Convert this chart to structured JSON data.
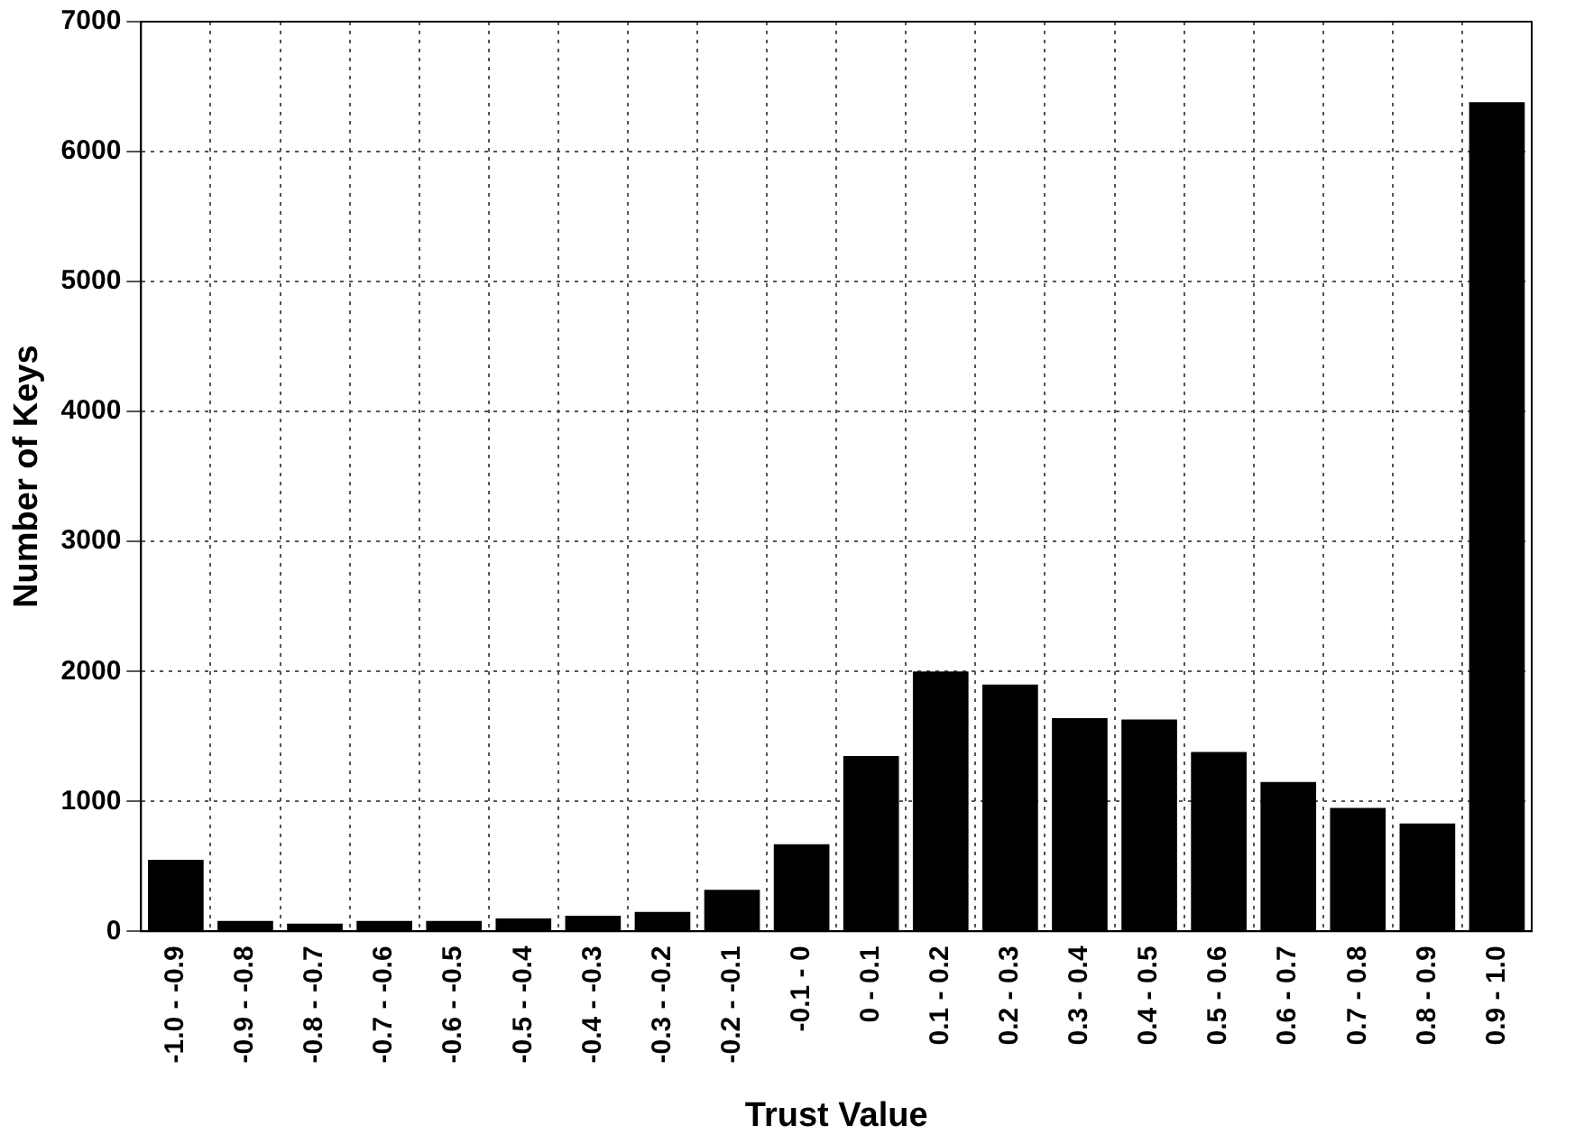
{
  "chart_data": {
    "type": "bar",
    "xlabel": "Trust Value",
    "ylabel": "Number of Keys",
    "categories": [
      "-1.0 - -0.9",
      "-0.9 - -0.8",
      "-0.8 - -0.7",
      "-0.7 - -0.6",
      "-0.6 - -0.5",
      "-0.5 - -0.4",
      "-0.4 - -0.3",
      "-0.3 - -0.2",
      "-0.2 - -0.1",
      "-0.1 - 0",
      "0 - 0.1",
      "0.1 - 0.2",
      "0.2 - 0.3",
      "0.3 - 0.4",
      "0.4 - 0.5",
      "0.5 - 0.6",
      "0.6 - 0.7",
      "0.7 - 0.8",
      "0.8 - 0.9",
      "0.9 - 1.0"
    ],
    "values": [
      550,
      80,
      60,
      80,
      80,
      100,
      120,
      150,
      320,
      670,
      1350,
      2000,
      1900,
      1640,
      1630,
      1380,
      1150,
      950,
      830,
      6380
    ],
    "color": "#000000",
    "ylim": [
      0,
      7000
    ],
    "yticks": [
      0,
      1000,
      2000,
      3000,
      4000,
      5000,
      6000,
      7000
    ],
    "grid": true
  }
}
